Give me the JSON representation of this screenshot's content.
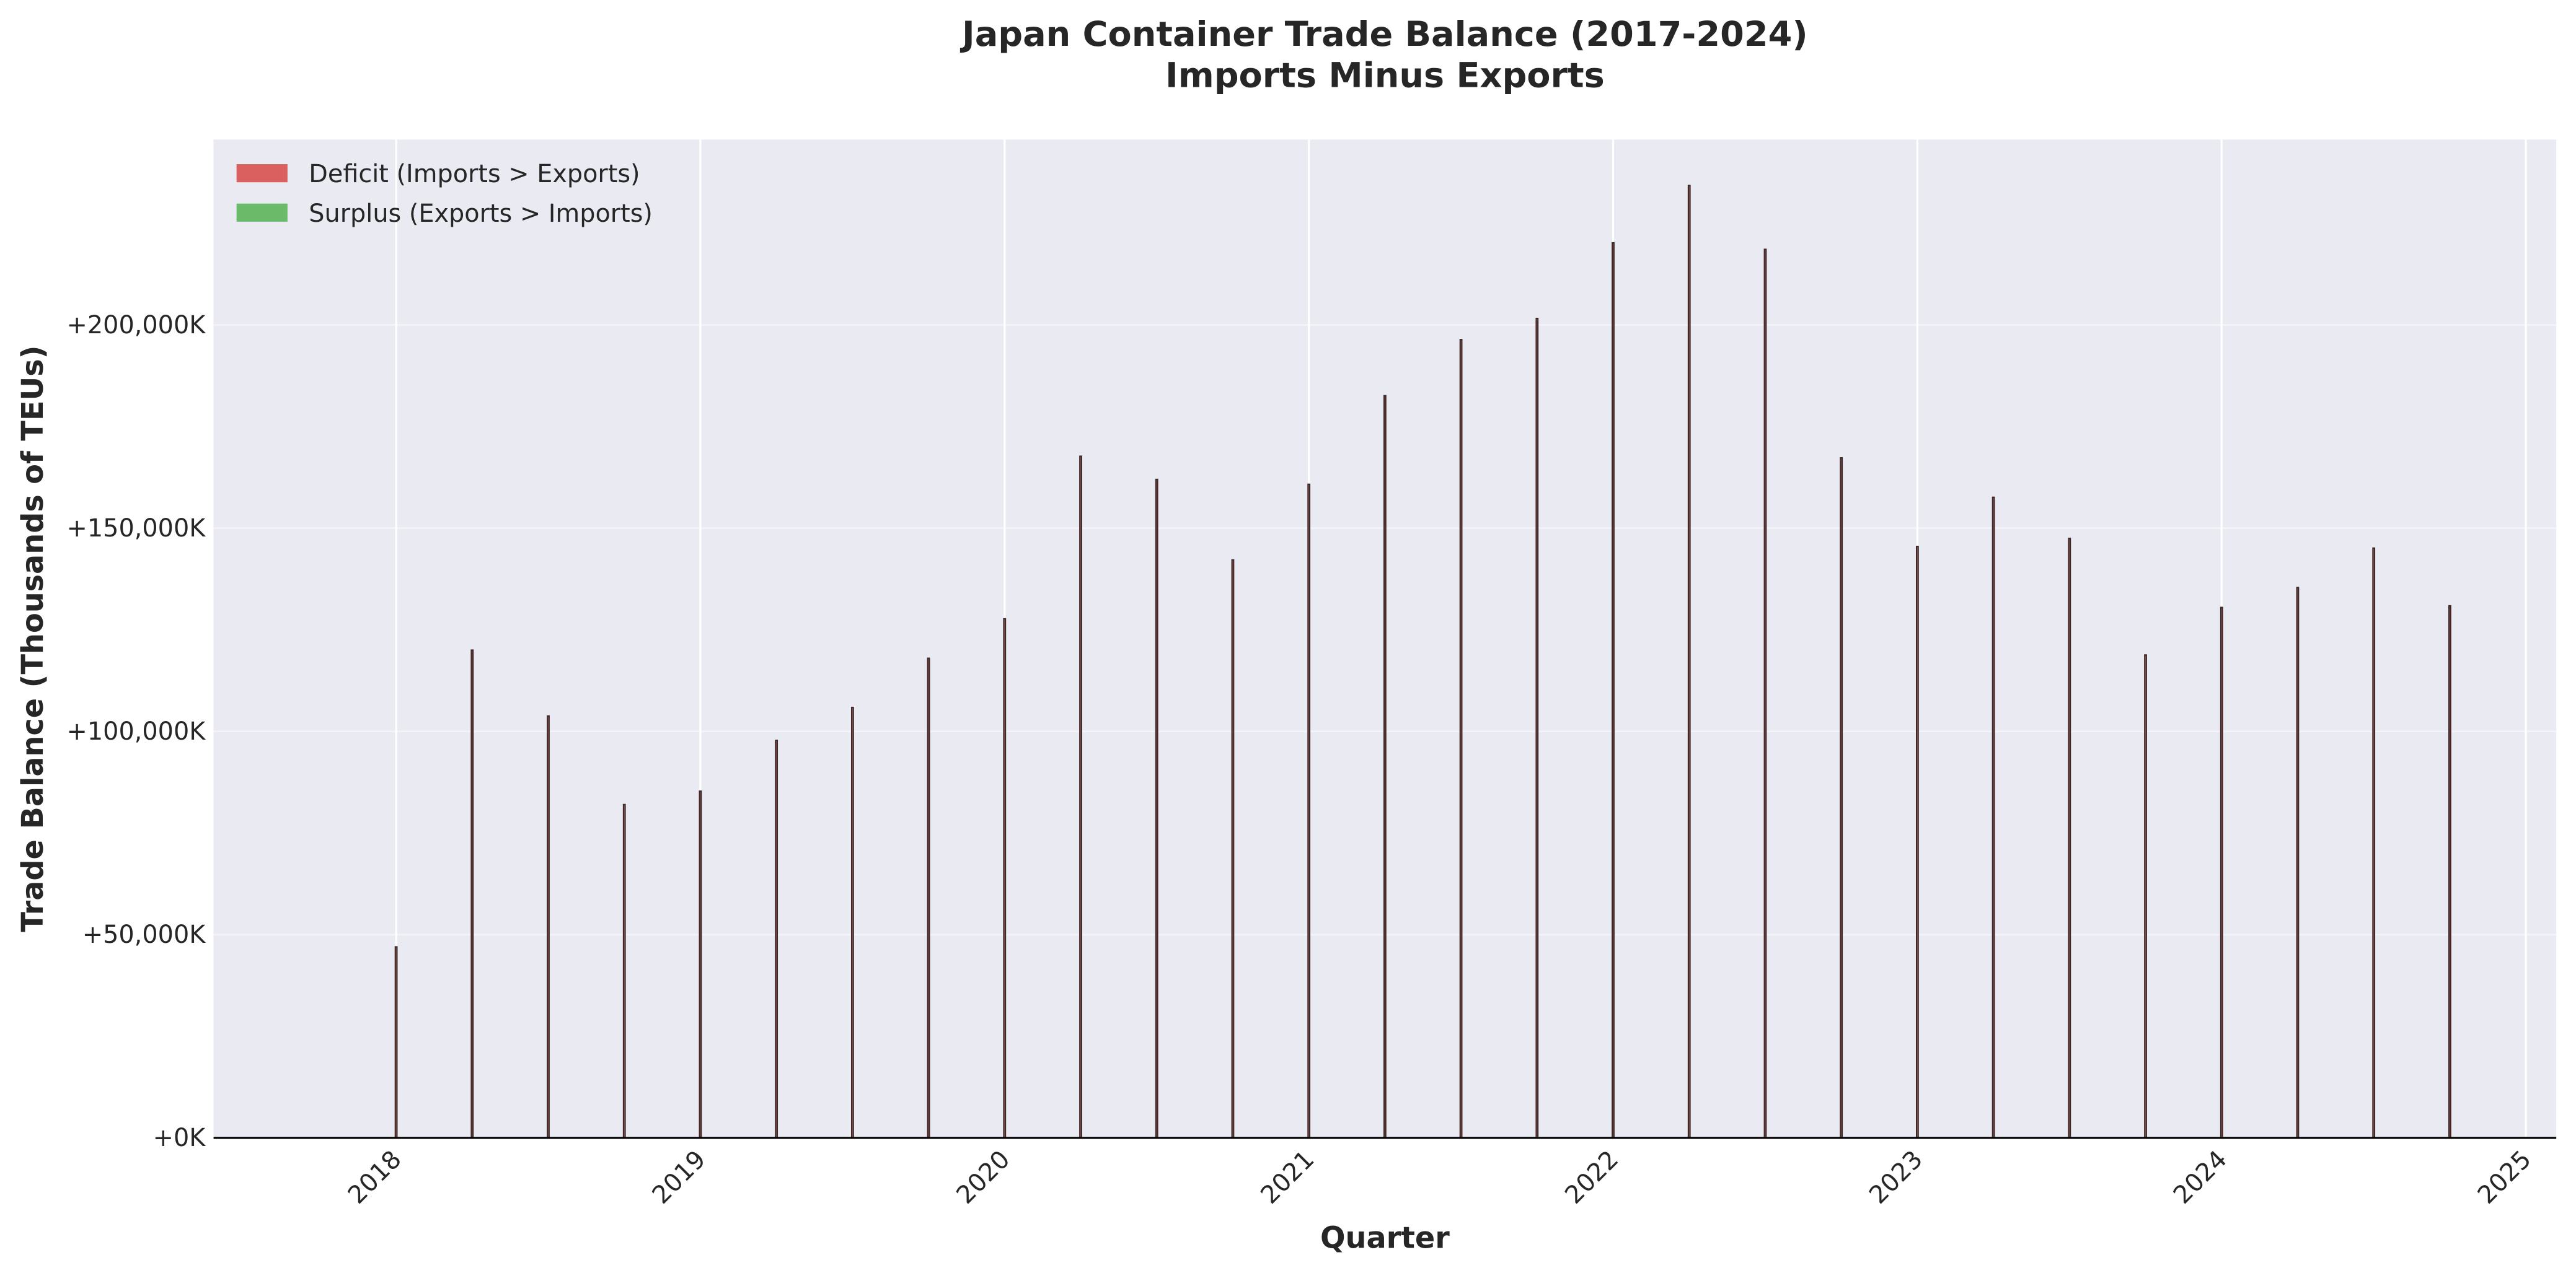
{
  "chart_data": {
    "type": "bar",
    "title": "Japan Container Trade Balance (2017-2024)",
    "subtitle": "Imports Minus Exports",
    "x_label": "Quarter",
    "y_label": "Trade Balance (Thousands of TEUs)",
    "x": [
      2018,
      2018.25,
      2018.5,
      2018.75,
      2019,
      2019.25,
      2019.5,
      2019.75,
      2020,
      2020.25,
      2020.5,
      2020.75,
      2021,
      2021.25,
      2021.5,
      2021.75,
      2022,
      2022.25,
      2022.5,
      2022.75,
      2023,
      2023.25,
      2023.5,
      2023.75,
      2024,
      2024.25,
      2024.5,
      2024.75
    ],
    "series": [
      {
        "name": "Deficit (Imports > Exports)",
        "color": "#d9605f",
        "values": [
          47000,
          120000,
          103800,
          82000,
          85300,
          97800,
          105900,
          118000,
          127700,
          167700,
          162000,
          142200,
          160800,
          182600,
          196400,
          201600,
          220200,
          234300,
          218600,
          167300,
          145500,
          157600,
          147500,
          118800,
          130500,
          135400,
          145100,
          130900
        ]
      },
      {
        "name": "Surplus (Exports > Imports)",
        "color": "#6aba6a",
        "values": [
          null,
          null,
          null,
          null,
          null,
          null,
          null,
          null,
          null,
          null,
          null,
          null,
          null,
          null,
          null,
          null,
          null,
          null,
          null,
          null,
          null,
          null,
          null,
          null,
          null,
          null,
          null,
          null
        ]
      }
    ],
    "edgecolor": "#3b2a2a",
    "xlim": [
      2017.4,
      2025.1
    ],
    "xticks": [
      2018,
      2019,
      2020,
      2021,
      2022,
      2023,
      2024,
      2025
    ],
    "ylim": [
      0,
      245600
    ],
    "yticks": [
      {
        "value": 0,
        "label": "+0K"
      },
      {
        "value": 50000,
        "label": "+50,000K"
      },
      {
        "value": 100000,
        "label": "+100,000K"
      },
      {
        "value": 150000,
        "label": "+150,000K"
      },
      {
        "value": 200000,
        "label": "+200,000K"
      }
    ],
    "grid": true,
    "legend": "upper left"
  }
}
